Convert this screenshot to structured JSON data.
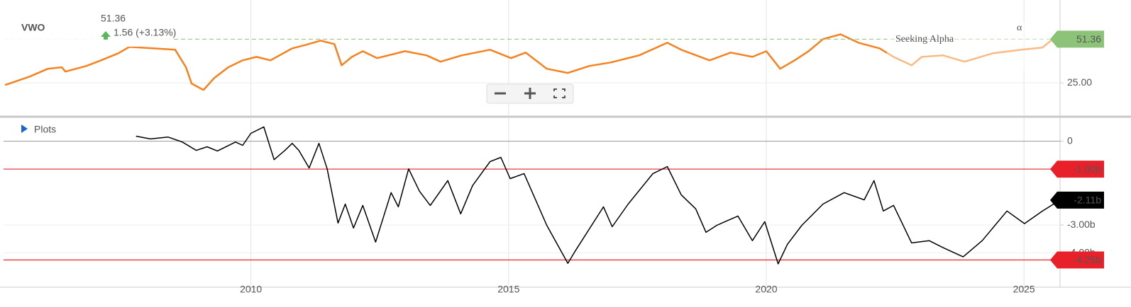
{
  "header": {
    "ticker": "VWO",
    "change": "1.56 (+3.13%)",
    "plots": "Plots",
    "watermark": "Seeking Alpha",
    "watermark_mark": "α"
  },
  "chart_data": [
    {
      "type": "line",
      "color": "#f5821f",
      "x": [
        2005.23,
        2005.71,
        2006.06,
        2006.33,
        2006.4,
        2006.81,
        2007.09,
        2007.43,
        2007.64,
        2008.53,
        2008.74,
        2008.85,
        2009.08,
        2009.29,
        2009.56,
        2009.84,
        2010.11,
        2010.38,
        2010.8,
        2011.07,
        2011.35,
        2011.62,
        2011.76,
        2011.96,
        2012.17,
        2012.45,
        2012.99,
        2013.41,
        2013.68,
        2014.09,
        2014.64,
        2015.05,
        2015.33,
        2015.74,
        2016.15,
        2016.57,
        2016.98,
        2017.53,
        2018.08,
        2018.35,
        2018.9,
        2019.31,
        2019.73,
        2020.0,
        2020.27,
        2020.55,
        2020.82,
        2021.1,
        2021.44,
        2021.79,
        2022.2,
        2022.47,
        2022.82,
        2023.02,
        2023.43,
        2023.85,
        2024.4,
        2024.95,
        2025.36,
        2025.56
      ],
      "values": [
        23.7,
        28.8,
        33.5,
        34.4,
        31.8,
        35.2,
        38.6,
        42.9,
        46.7,
        45.0,
        34.4,
        24.6,
        20.7,
        28.0,
        34.4,
        38.6,
        40.7,
        38.6,
        45.8,
        48.0,
        50.5,
        48.4,
        35.6,
        40.7,
        44.1,
        39.9,
        44.1,
        41.6,
        37.8,
        41.6,
        45.0,
        39.9,
        43.3,
        33.5,
        31.0,
        35.2,
        37.3,
        41.6,
        49.2,
        45.0,
        38.6,
        43.3,
        40.7,
        44.1,
        33.5,
        38.6,
        44.1,
        51.4,
        54.3,
        49.2,
        45.8,
        40.7,
        35.6,
        40.7,
        41.6,
        37.8,
        42.9,
        45.0,
        46.3,
        51.36
      ],
      "current": 51.36,
      "current_color": "#8cc379",
      "xlim": [
        2005.2,
        2025.7
      ],
      "xticks": [
        2010,
        2015,
        2020,
        2025
      ],
      "ylim": [
        5,
        75
      ],
      "yticks": [
        {
          "value": 25,
          "label": "25.00"
        }
      ],
      "grid": true
    },
    {
      "type": "line",
      "color": "#000000",
      "x": [
        2007.77,
        2008.05,
        2008.39,
        2008.67,
        2008.94,
        2009.15,
        2009.35,
        2009.7,
        2009.84,
        2010.0,
        2010.25,
        2010.45,
        2010.66,
        2010.8,
        2010.93,
        2011.13,
        2011.32,
        2011.48,
        2011.69,
        2011.83,
        2011.99,
        2012.17,
        2012.42,
        2012.72,
        2012.86,
        2013.06,
        2013.27,
        2013.48,
        2013.82,
        2014.07,
        2014.3,
        2014.64,
        2014.85,
        2015.03,
        2015.3,
        2015.74,
        2016.15,
        2016.29,
        2016.84,
        2017.01,
        2017.32,
        2017.8,
        2018.08,
        2018.35,
        2018.63,
        2018.83,
        2019.04,
        2019.45,
        2019.73,
        2019.97,
        2020.23,
        2020.41,
        2020.69,
        2021.1,
        2021.51,
        2021.9,
        2022.09,
        2022.27,
        2022.47,
        2022.82,
        2023.16,
        2023.43,
        2023.82,
        2024.19,
        2024.67,
        2025.01,
        2025.36,
        2025.7
      ],
      "values": [
        0.18,
        0.08,
        0.15,
        -0.03,
        -0.33,
        -0.2,
        -0.35,
        -0.03,
        -0.15,
        0.28,
        0.51,
        -0.66,
        -0.33,
        -0.08,
        -0.33,
        -0.96,
        -0.08,
        -0.99,
        -2.93,
        -2.25,
        -3.11,
        -2.3,
        -3.61,
        -1.84,
        -2.35,
        -0.99,
        -1.79,
        -2.3,
        -1.41,
        -2.6,
        -1.59,
        -0.73,
        -0.58,
        -1.34,
        -1.16,
        -3.01,
        -4.37,
        -3.94,
        -2.35,
        -3.06,
        -2.25,
        -1.16,
        -0.91,
        -1.92,
        -2.42,
        -3.26,
        -3.01,
        -2.68,
        -3.56,
        -2.88,
        -4.39,
        -3.69,
        -3.01,
        -2.25,
        -1.84,
        -2.1,
        -1.41,
        -2.5,
        -2.3,
        -3.64,
        -3.56,
        -3.81,
        -4.14,
        -3.56,
        -2.5,
        -2.95,
        -2.5,
        -2.11
      ],
      "current": {
        "value": -2.11,
        "label": "-2.11b"
      },
      "current_color": "#000000",
      "ref_lines": [
        {
          "value": -1,
          "label": "-1.00b"
        },
        {
          "value": -4.25,
          "label": "-4.25b"
        }
      ],
      "ref_color": "#e8202a",
      "xlim": [
        2005.2,
        2025.7
      ],
      "xticks": [
        2010,
        2015,
        2020,
        2025
      ],
      "ylim": [
        -5.2,
        0.85
      ],
      "yticks": [
        0,
        {
          "value": -3,
          "label": "-3.00b"
        },
        {
          "value": -4,
          "label": "-4.00b"
        }
      ],
      "grid": true
    }
  ]
}
